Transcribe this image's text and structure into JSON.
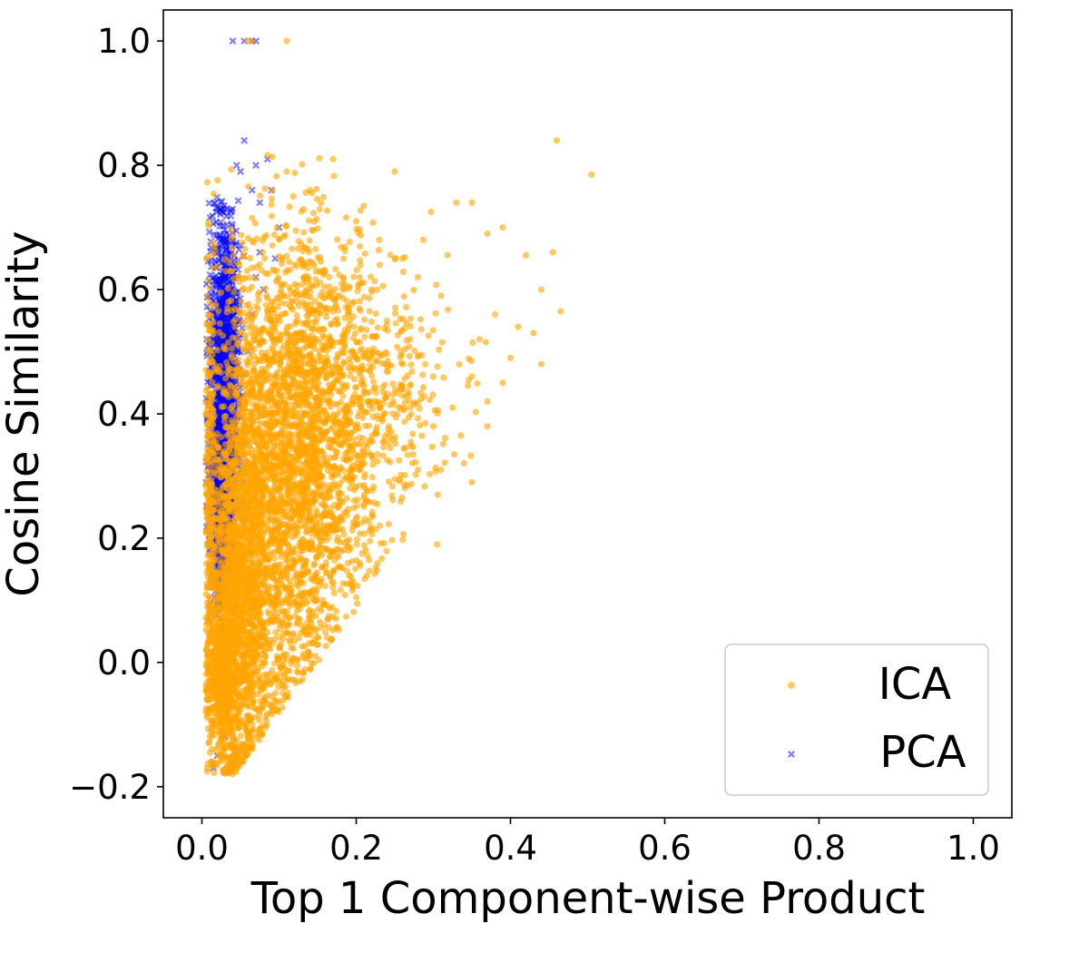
{
  "chart_data": {
    "type": "scatter",
    "title": "",
    "xlabel": "Top 1 Component-wise Product",
    "ylabel": "Cosine Similarity",
    "xlim": [
      -0.05,
      1.05
    ],
    "ylim": [
      -0.25,
      1.05
    ],
    "xticks": [
      0.0,
      0.2,
      0.4,
      0.6,
      0.8,
      1.0
    ],
    "xtick_labels": [
      "0.0",
      "0.2",
      "0.4",
      "0.6",
      "0.8",
      "1.0"
    ],
    "yticks": [
      -0.2,
      0.0,
      0.2,
      0.4,
      0.6,
      0.8,
      1.0
    ],
    "ytick_labels": [
      "−0.2",
      "0.0",
      "0.2",
      "0.4",
      "0.6",
      "0.8",
      "1.0"
    ],
    "grid": false,
    "legend_position": "lower-right",
    "series": [
      {
        "name": "ICA",
        "marker": "circle",
        "color": "#FFA500",
        "alpha": 0.6,
        "points": [
          [
            0.06,
            1.0
          ],
          [
            0.065,
            1.0
          ],
          [
            0.11,
            1.0
          ],
          [
            0.46,
            0.84
          ],
          [
            0.505,
            0.785
          ],
          [
            0.25,
            0.79
          ],
          [
            0.17,
            0.81
          ],
          [
            0.11,
            0.79
          ],
          [
            0.14,
            0.76
          ],
          [
            0.33,
            0.74
          ],
          [
            0.35,
            0.74
          ],
          [
            0.37,
            0.69
          ],
          [
            0.39,
            0.7
          ],
          [
            0.42,
            0.655
          ],
          [
            0.455,
            0.66
          ],
          [
            0.44,
            0.6
          ],
          [
            0.465,
            0.565
          ],
          [
            0.44,
            0.48
          ],
          [
            0.41,
            0.54
          ],
          [
            0.38,
            0.56
          ],
          [
            0.36,
            0.52
          ],
          [
            0.35,
            0.46
          ],
          [
            0.37,
            0.42
          ],
          [
            0.39,
            0.45
          ],
          [
            0.4,
            0.49
          ],
          [
            0.43,
            0.53
          ],
          [
            0.37,
            0.38
          ],
          [
            0.35,
            0.29
          ],
          [
            0.325,
            0.41
          ],
          [
            0.3,
            0.46
          ],
          [
            0.305,
            0.19
          ],
          [
            0.2,
            0.105
          ],
          [
            0.28,
            0.31
          ],
          [
            0.31,
            0.59
          ],
          [
            0.28,
            0.62
          ],
          [
            0.26,
            0.65
          ],
          [
            0.23,
            0.68
          ],
          [
            0.2,
            0.71
          ],
          [
            0.24,
            0.55
          ],
          [
            0.22,
            0.6
          ],
          [
            0.27,
            0.52
          ],
          [
            0.3,
            0.38
          ]
        ],
        "cloud": [
          {
            "cx": 0.1,
            "cy": 0.3,
            "sx": 0.055,
            "sy": 0.19,
            "n": 3200
          },
          {
            "cx": 0.045,
            "cy": 0.12,
            "sx": 0.02,
            "sy": 0.14,
            "n": 1400
          },
          {
            "cx": 0.2,
            "cy": 0.42,
            "sx": 0.06,
            "sy": 0.11,
            "n": 700
          },
          {
            "cx": 0.025,
            "cy": -0.03,
            "sx": 0.01,
            "sy": 0.06,
            "n": 450
          }
        ]
      },
      {
        "name": "PCA",
        "marker": "x",
        "color": "#0000FF",
        "alpha": 0.5,
        "points": [
          [
            0.04,
            1.0
          ],
          [
            0.055,
            1.0
          ],
          [
            0.065,
            1.0
          ],
          [
            0.07,
            1.0
          ],
          [
            0.055,
            0.84
          ],
          [
            0.045,
            0.8
          ],
          [
            0.05,
            0.79
          ],
          [
            0.07,
            0.8
          ],
          [
            0.085,
            0.81
          ],
          [
            0.065,
            0.76
          ],
          [
            0.075,
            0.74
          ],
          [
            0.09,
            0.76
          ],
          [
            0.1,
            0.7
          ],
          [
            0.095,
            0.65
          ],
          [
            0.075,
            0.66
          ],
          [
            0.07,
            0.62
          ],
          [
            0.065,
            0.56
          ],
          [
            0.06,
            0.5
          ],
          [
            0.08,
            0.6
          ],
          [
            0.015,
            -0.17
          ],
          [
            0.02,
            -0.15
          ],
          [
            0.03,
            -0.12
          ],
          [
            0.035,
            -0.09
          ]
        ],
        "cloud": [
          {
            "cx": 0.03,
            "cy": 0.45,
            "sx": 0.01,
            "sy": 0.14,
            "n": 1400
          },
          {
            "cx": 0.025,
            "cy": 0.25,
            "sx": 0.008,
            "sy": 0.1,
            "n": 500
          }
        ]
      }
    ]
  }
}
